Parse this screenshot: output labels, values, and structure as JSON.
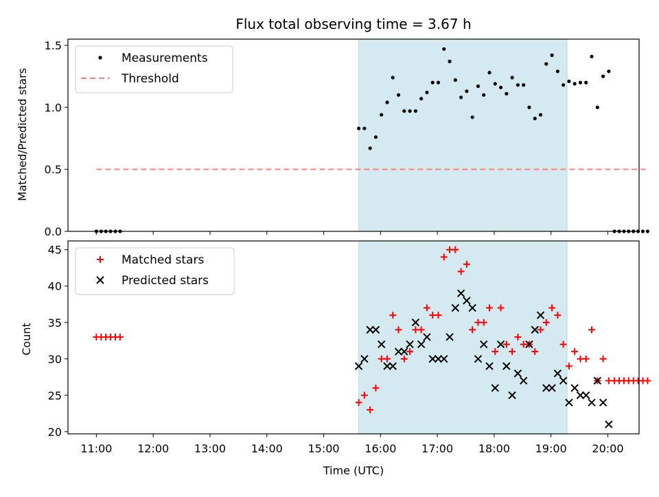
{
  "chart_data": {
    "title": "Flux total observing time = 3.67 h",
    "xlabel": "Time (UTC)",
    "x_ticks": [
      "11:00",
      "12:00",
      "13:00",
      "14:00",
      "15:00",
      "16:00",
      "17:00",
      "18:00",
      "19:00",
      "20:00"
    ],
    "observing_window": {
      "start": "15:37",
      "end": "19:17",
      "color": "#d4eaf0"
    },
    "panels": [
      {
        "type": "scatter",
        "ylabel": "Matched/Predicted stars",
        "ylim": [
          0,
          1.55
        ],
        "y_ticks": [
          0.0,
          0.5,
          1.0,
          1.5
        ],
        "legend_position": "top-left",
        "series": [
          {
            "name": "Measurements",
            "marker": "dot",
            "color": "#000000",
            "points": [
              [
                "11:00",
                0
              ],
              [
                "11:05",
                0
              ],
              [
                "11:10",
                0
              ],
              [
                "11:15",
                0
              ],
              [
                "11:20",
                0
              ],
              [
                "11:25",
                0
              ],
              [
                "15:37",
                0.83
              ],
              [
                "15:43",
                0.83
              ],
              [
                "15:49",
                0.67
              ],
              [
                "15:55",
                0.76
              ],
              [
                "16:01",
                0.94
              ],
              [
                "16:07",
                1.04
              ],
              [
                "16:13",
                1.24
              ],
              [
                "16:19",
                1.1
              ],
              [
                "16:25",
                0.97
              ],
              [
                "16:31",
                0.97
              ],
              [
                "16:37",
                0.97
              ],
              [
                "16:43",
                1.07
              ],
              [
                "16:49",
                1.12
              ],
              [
                "16:55",
                1.2
              ],
              [
                "17:01",
                1.2
              ],
              [
                "17:07",
                1.47
              ],
              [
                "17:13",
                1.37
              ],
              [
                "17:19",
                1.22
              ],
              [
                "17:25",
                1.08
              ],
              [
                "17:31",
                1.13
              ],
              [
                "17:37",
                0.92
              ],
              [
                "17:43",
                1.17
              ],
              [
                "17:49",
                1.1
              ],
              [
                "17:55",
                1.28
              ],
              [
                "18:01",
                1.19
              ],
              [
                "18:07",
                1.16
              ],
              [
                "18:13",
                1.11
              ],
              [
                "18:19",
                1.24
              ],
              [
                "18:25",
                1.18
              ],
              [
                "18:31",
                1.18
              ],
              [
                "18:37",
                1.0
              ],
              [
                "18:43",
                0.91
              ],
              [
                "18:49",
                0.94
              ],
              [
                "18:55",
                1.35
              ],
              [
                "19:01",
                1.42
              ],
              [
                "19:07",
                1.29
              ],
              [
                "19:13",
                1.18
              ],
              [
                "19:19",
                1.21
              ],
              [
                "19:25",
                1.19
              ],
              [
                "19:31",
                1.2
              ],
              [
                "19:37",
                1.2
              ],
              [
                "19:43",
                1.41
              ],
              [
                "19:49",
                1.0
              ],
              [
                "19:55",
                1.25
              ],
              [
                "20:01",
                1.29
              ],
              [
                "20:07",
                0
              ],
              [
                "20:12",
                0
              ],
              [
                "20:17",
                0
              ],
              [
                "20:22",
                0
              ],
              [
                "20:27",
                0
              ],
              [
                "20:32",
                0
              ],
              [
                "20:37",
                0
              ],
              [
                "20:42",
                0
              ]
            ]
          },
          {
            "name": "Threshold",
            "style": "dashed",
            "color": "#ff7f7f",
            "x": [
              "11:00",
              "20:40"
            ],
            "y": 0.5
          }
        ]
      },
      {
        "type": "scatter",
        "ylabel": "Count",
        "ylim": [
          19.7,
          46.2
        ],
        "y_ticks": [
          20,
          25,
          30,
          35,
          40,
          45
        ],
        "legend_position": "top-left",
        "series": [
          {
            "name": "Matched stars",
            "marker": "plus",
            "color": "#ff0000",
            "points": [
              [
                "11:00",
                33
              ],
              [
                "11:05",
                33
              ],
              [
                "11:10",
                33
              ],
              [
                "11:15",
                33
              ],
              [
                "11:20",
                33
              ],
              [
                "11:25",
                33
              ],
              [
                "15:37",
                24
              ],
              [
                "15:43",
                25
              ],
              [
                "15:49",
                23
              ],
              [
                "15:55",
                26
              ],
              [
                "16:01",
                30
              ],
              [
                "16:07",
                30
              ],
              [
                "16:13",
                36
              ],
              [
                "16:19",
                34
              ],
              [
                "16:25",
                30
              ],
              [
                "16:31",
                31
              ],
              [
                "16:37",
                34
              ],
              [
                "16:43",
                34
              ],
              [
                "16:49",
                37
              ],
              [
                "16:55",
                36
              ],
              [
                "17:01",
                36
              ],
              [
                "17:07",
                44
              ],
              [
                "17:13",
                45
              ],
              [
                "17:19",
                45
              ],
              [
                "17:25",
                42
              ],
              [
                "17:31",
                43
              ],
              [
                "17:37",
                34
              ],
              [
                "17:43",
                35
              ],
              [
                "17:49",
                35
              ],
              [
                "17:55",
                37
              ],
              [
                "18:01",
                31
              ],
              [
                "18:07",
                37
              ],
              [
                "18:13",
                32
              ],
              [
                "18:19",
                31
              ],
              [
                "18:25",
                33
              ],
              [
                "18:31",
                32
              ],
              [
                "18:37",
                32
              ],
              [
                "18:43",
                31
              ],
              [
                "18:49",
                34
              ],
              [
                "18:55",
                35
              ],
              [
                "19:01",
                37
              ],
              [
                "19:07",
                36
              ],
              [
                "19:13",
                32
              ],
              [
                "19:19",
                29
              ],
              [
                "19:25",
                31
              ],
              [
                "19:31",
                30
              ],
              [
                "19:37",
                30
              ],
              [
                "19:43",
                34
              ],
              [
                "19:49",
                27
              ],
              [
                "19:55",
                30
              ],
              [
                "20:01",
                27
              ],
              [
                "20:07",
                27
              ],
              [
                "20:12",
                27
              ],
              [
                "20:17",
                27
              ],
              [
                "20:22",
                27
              ],
              [
                "20:27",
                27
              ],
              [
                "20:32",
                27
              ],
              [
                "20:37",
                27
              ],
              [
                "20:42",
                27
              ]
            ]
          },
          {
            "name": "Predicted stars",
            "marker": "x",
            "color": "#000000",
            "points": [
              [
                "15:37",
                29
              ],
              [
                "15:43",
                30
              ],
              [
                "15:49",
                34
              ],
              [
                "15:55",
                34
              ],
              [
                "16:01",
                32
              ],
              [
                "16:07",
                29
              ],
              [
                "16:13",
                29
              ],
              [
                "16:19",
                31
              ],
              [
                "16:25",
                31
              ],
              [
                "16:31",
                32
              ],
              [
                "16:37",
                35
              ],
              [
                "16:43",
                32
              ],
              [
                "16:49",
                33
              ],
              [
                "16:55",
                30
              ],
              [
                "17:01",
                30
              ],
              [
                "17:07",
                30
              ],
              [
                "17:13",
                33
              ],
              [
                "17:19",
                37
              ],
              [
                "17:25",
                39
              ],
              [
                "17:31",
                38
              ],
              [
                "17:37",
                37
              ],
              [
                "17:43",
                30
              ],
              [
                "17:49",
                32
              ],
              [
                "17:55",
                29
              ],
              [
                "18:01",
                26
              ],
              [
                "18:07",
                32
              ],
              [
                "18:13",
                29
              ],
              [
                "18:19",
                25
              ],
              [
                "18:25",
                28
              ],
              [
                "18:31",
                27
              ],
              [
                "18:37",
                32
              ],
              [
                "18:43",
                34
              ],
              [
                "18:49",
                36
              ],
              [
                "18:55",
                26
              ],
              [
                "19:01",
                26
              ],
              [
                "19:07",
                28
              ],
              [
                "19:13",
                27
              ],
              [
                "19:19",
                24
              ],
              [
                "19:25",
                26
              ],
              [
                "19:31",
                25
              ],
              [
                "19:37",
                25
              ],
              [
                "19:43",
                24
              ],
              [
                "19:49",
                27
              ],
              [
                "19:55",
                24
              ],
              [
                "20:01",
                21
              ]
            ]
          }
        ]
      }
    ]
  }
}
